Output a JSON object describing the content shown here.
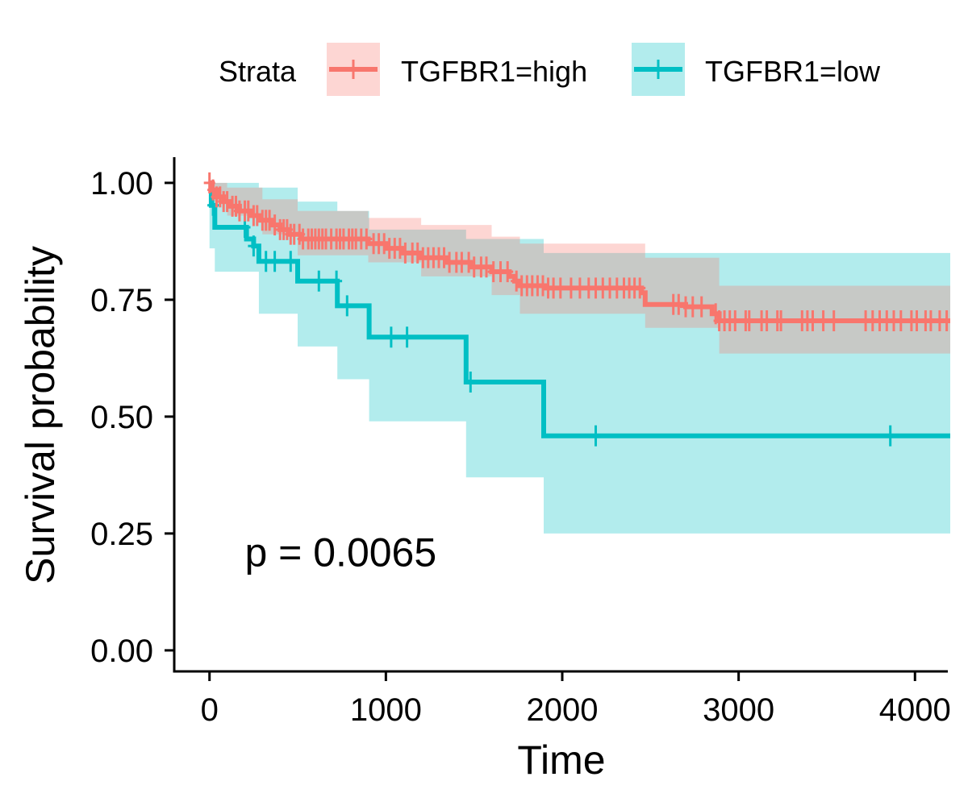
{
  "chart_data": {
    "type": "line",
    "subtype": "kaplan-meier step curve with confidence bands",
    "xlabel": "Time",
    "ylabel": "Survival probability",
    "xlim": [
      -200,
      4200
    ],
    "ylim": [
      -0.045,
      1.055
    ],
    "xticks": [
      0,
      1000,
      2000,
      3000,
      4000
    ],
    "yticks": [
      0.0,
      0.25,
      0.5,
      0.75,
      1.0
    ],
    "xtick_labels": [
      "0",
      "1000",
      "2000",
      "3000",
      "4000"
    ],
    "ytick_labels": [
      "0.00",
      "0.25",
      "0.50",
      "0.75",
      "1.00"
    ],
    "grid": false,
    "legend": {
      "title": "Strata",
      "position": "top",
      "entries": [
        "TGFBR1=high",
        "TGFBR1=low"
      ]
    },
    "annotation": {
      "text": "p = 0.0065",
      "x": 200,
      "y": 0.18
    },
    "colors": {
      "high": "#F8766D",
      "low": "#00BFC4",
      "high_band": "#F8766D",
      "low_band": "#00BFC4"
    },
    "series": [
      {
        "name": "TGFBR1=high",
        "color": "#F8766D",
        "steps": [
          [
            0,
            1.0
          ],
          [
            15,
            0.985
          ],
          [
            40,
            0.97
          ],
          [
            80,
            0.96
          ],
          [
            120,
            0.95
          ],
          [
            170,
            0.94
          ],
          [
            230,
            0.93
          ],
          [
            290,
            0.92
          ],
          [
            350,
            0.91
          ],
          [
            400,
            0.9
          ],
          [
            450,
            0.89
          ],
          [
            520,
            0.88
          ],
          [
            900,
            0.87
          ],
          [
            1000,
            0.86
          ],
          [
            1100,
            0.85
          ],
          [
            1200,
            0.84
          ],
          [
            1350,
            0.83
          ],
          [
            1480,
            0.82
          ],
          [
            1600,
            0.81
          ],
          [
            1700,
            0.8
          ],
          [
            1730,
            0.79
          ],
          [
            1760,
            0.78
          ],
          [
            1900,
            0.775
          ],
          [
            2450,
            0.765
          ],
          [
            2470,
            0.74
          ],
          [
            2700,
            0.735
          ],
          [
            2850,
            0.72
          ],
          [
            2890,
            0.705
          ],
          [
            4200,
            0.705
          ]
        ],
        "censor_x": [
          0,
          20,
          40,
          60,
          80,
          100,
          130,
          150,
          170,
          200,
          220,
          250,
          270,
          300,
          320,
          340,
          370,
          400,
          420,
          440,
          460,
          480,
          510,
          530,
          560,
          580,
          600,
          620,
          640,
          660,
          690,
          720,
          740,
          760,
          790,
          810,
          830,
          860,
          890,
          930,
          960,
          990,
          1020,
          1050,
          1080,
          1110,
          1150,
          1180,
          1210,
          1240,
          1270,
          1300,
          1330,
          1360,
          1400,
          1430,
          1470,
          1500,
          1540,
          1570,
          1610,
          1650,
          1690,
          1740,
          1770,
          1800,
          1830,
          1860,
          1890,
          1920,
          1950,
          1990,
          2050,
          2100,
          2150,
          2190,
          2230,
          2270,
          2310,
          2350,
          2380,
          2410,
          2440,
          2630,
          2660,
          2700,
          2740,
          2790,
          2870,
          2890,
          2920,
          2950,
          2980,
          3040,
          3060,
          3130,
          3160,
          3220,
          3240,
          3360,
          3390,
          3420,
          3480,
          3540,
          3720,
          3760,
          3800,
          3840,
          3880,
          3920,
          3980,
          4010,
          4060,
          4090,
          4140,
          4180
        ],
        "band_upper": [
          [
            0,
            1.0
          ],
          [
            100,
            0.99
          ],
          [
            300,
            0.965
          ],
          [
            500,
            0.94
          ],
          [
            900,
            0.925
          ],
          [
            1200,
            0.91
          ],
          [
            1600,
            0.885
          ],
          [
            1760,
            0.87
          ],
          [
            2470,
            0.84
          ],
          [
            2890,
            0.78
          ],
          [
            4200,
            0.78
          ]
        ],
        "band_lower": [
          [
            0,
            0.96
          ],
          [
            100,
            0.93
          ],
          [
            300,
            0.89
          ],
          [
            500,
            0.845
          ],
          [
            900,
            0.83
          ],
          [
            1200,
            0.8
          ],
          [
            1600,
            0.76
          ],
          [
            1760,
            0.72
          ],
          [
            2470,
            0.69
          ],
          [
            2890,
            0.635
          ],
          [
            4200,
            0.635
          ]
        ]
      },
      {
        "name": "TGFBR1=low",
        "color": "#00BFC4",
        "steps": [
          [
            0,
            1.0
          ],
          [
            10,
            0.952
          ],
          [
            30,
            0.905
          ],
          [
            200,
            0.905
          ],
          [
            210,
            0.88
          ],
          [
            250,
            0.865
          ],
          [
            280,
            0.832
          ],
          [
            490,
            0.832
          ],
          [
            500,
            0.79
          ],
          [
            720,
            0.79
          ],
          [
            725,
            0.737
          ],
          [
            900,
            0.737
          ],
          [
            905,
            0.67
          ],
          [
            1450,
            0.67
          ],
          [
            1455,
            0.574
          ],
          [
            1890,
            0.574
          ],
          [
            1895,
            0.459
          ],
          [
            4200,
            0.459
          ]
        ],
        "censor_x": [
          20,
          200,
          250,
          320,
          370,
          460,
          620,
          720,
          780,
          1030,
          1120,
          1480,
          2190,
          3860
        ],
        "band_upper": [
          [
            0,
            1.0
          ],
          [
            280,
            0.99
          ],
          [
            500,
            0.96
          ],
          [
            725,
            0.94
          ],
          [
            905,
            0.9
          ],
          [
            1455,
            0.88
          ],
          [
            1895,
            0.85
          ],
          [
            4200,
            0.85
          ]
        ],
        "band_lower": [
          [
            0,
            0.86
          ],
          [
            30,
            0.81
          ],
          [
            280,
            0.72
          ],
          [
            500,
            0.65
          ],
          [
            725,
            0.58
          ],
          [
            905,
            0.49
          ],
          [
            1455,
            0.37
          ],
          [
            1895,
            0.25
          ],
          [
            4200,
            0.25
          ]
        ]
      }
    ]
  }
}
